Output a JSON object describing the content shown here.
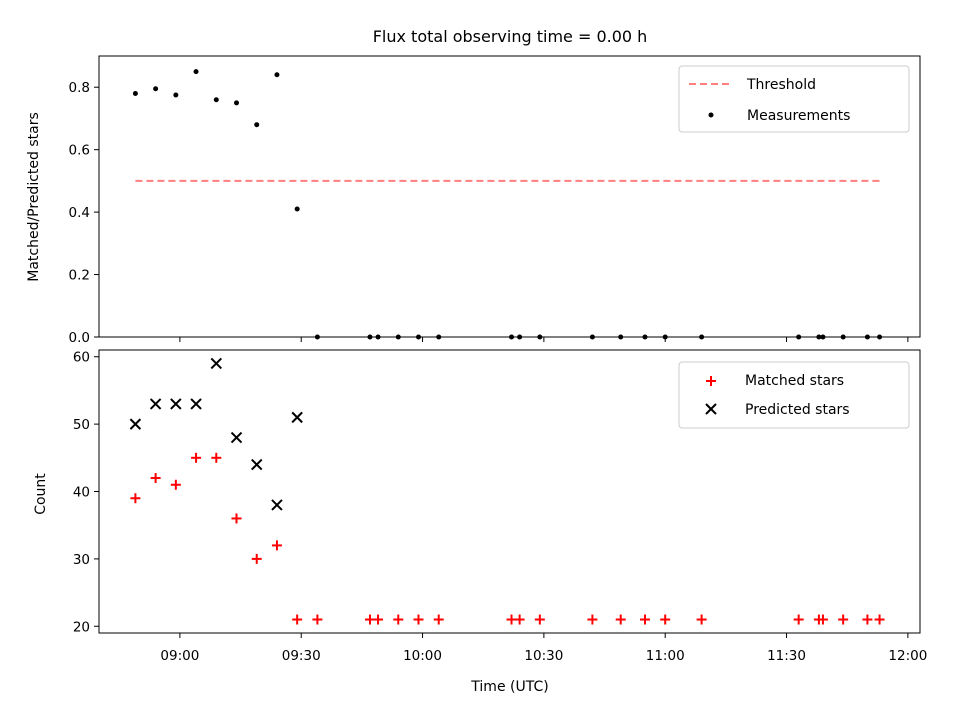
{
  "title": "Flux total observing time = 0.00 h",
  "xlabel": "Time (UTC)",
  "x_ticks": [
    "09:00",
    "09:30",
    "10:00",
    "10:30",
    "11:00",
    "11:30",
    "12:00"
  ],
  "top_panel": {
    "ylabel": "Matched/Predicted stars",
    "y_ticks": [
      "0.0",
      "0.2",
      "0.4",
      "0.6",
      "0.8"
    ],
    "legend": {
      "threshold": "Threshold",
      "measurements": "Measurements"
    }
  },
  "bottom_panel": {
    "ylabel": "Count",
    "y_ticks": [
      "20",
      "30",
      "40",
      "50",
      "60"
    ],
    "legend": {
      "matched": "Matched stars",
      "predicted": "Predicted stars"
    }
  },
  "colors": {
    "threshold": "#ff7f7f",
    "measurements": "#000000",
    "matched": "#ff0000",
    "predicted": "#000000"
  },
  "chart_data": [
    {
      "type": "scatter",
      "title": "Flux total observing time = 0.00 h",
      "xlabel": "",
      "ylabel": "Matched/Predicted stars",
      "xlim": [
        "08:40",
        "12:03"
      ],
      "ylim": [
        0,
        0.9
      ],
      "grid": false,
      "legend_position": "top-right",
      "threshold": {
        "name": "Threshold",
        "value": 0.5,
        "x_range": [
          "08:49",
          "11:53"
        ],
        "style": "dashed"
      },
      "series": [
        {
          "name": "Measurements",
          "x": [
            "08:49",
            "08:54",
            "08:59",
            "09:04",
            "09:09",
            "09:14",
            "09:19",
            "09:24",
            "09:29",
            "09:34",
            "09:47",
            "09:49",
            "09:54",
            "09:59",
            "10:04",
            "10:22",
            "10:24",
            "10:29",
            "10:42",
            "10:49",
            "10:55",
            "11:00",
            "11:09",
            "11:33",
            "11:38",
            "11:39",
            "11:44",
            "11:50",
            "11:53"
          ],
          "y": [
            0.78,
            0.795,
            0.775,
            0.85,
            0.76,
            0.75,
            0.68,
            0.84,
            0.41,
            0,
            0,
            0,
            0,
            0,
            0,
            0,
            0,
            0,
            0,
            0,
            0,
            0,
            0,
            0,
            0,
            0,
            0,
            0,
            0
          ]
        }
      ]
    },
    {
      "type": "scatter",
      "xlabel": "Time (UTC)",
      "ylabel": "Count",
      "xlim": [
        "08:40",
        "12:03"
      ],
      "ylim": [
        19,
        61
      ],
      "grid": false,
      "legend_position": "top-right",
      "series": [
        {
          "name": "Matched stars",
          "marker": "+",
          "x": [
            "08:49",
            "08:54",
            "08:59",
            "09:04",
            "09:09",
            "09:14",
            "09:19",
            "09:24",
            "09:29",
            "09:34",
            "09:47",
            "09:49",
            "09:54",
            "09:59",
            "10:04",
            "10:22",
            "10:24",
            "10:29",
            "10:42",
            "10:49",
            "10:55",
            "11:00",
            "11:09",
            "11:33",
            "11:38",
            "11:39",
            "11:44",
            "11:50",
            "11:53"
          ],
          "y": [
            39,
            42,
            41,
            45,
            45,
            36,
            30,
            32,
            21,
            21,
            21,
            21,
            21,
            21,
            21,
            21,
            21,
            21,
            21,
            21,
            21,
            21,
            21,
            21,
            21,
            21,
            21,
            21,
            21
          ]
        },
        {
          "name": "Predicted stars",
          "marker": "x",
          "x": [
            "08:49",
            "08:54",
            "08:59",
            "09:04",
            "09:09",
            "09:14",
            "09:19",
            "09:24",
            "09:29"
          ],
          "y": [
            50,
            53,
            53,
            53,
            59,
            48,
            44,
            38,
            51
          ]
        }
      ]
    }
  ]
}
